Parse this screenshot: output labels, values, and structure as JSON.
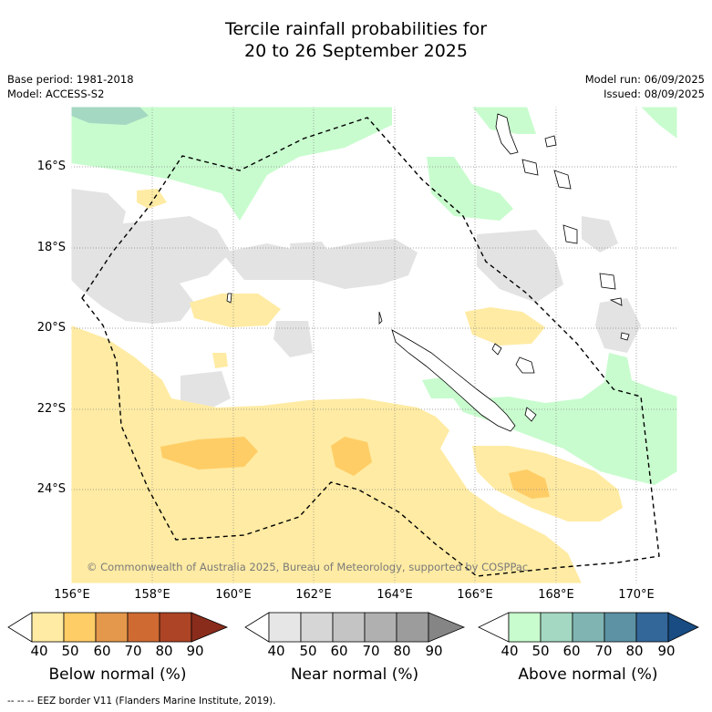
{
  "title_line1": "Tercile rainfall probabilities for",
  "title_line2": "20 to 26 September 2025",
  "base_period": "Base period: 1981-2018",
  "model": "Model: ACCESS-S2",
  "model_run": "Model run: 06/09/2025",
  "issued": "Issued: 08/09/2025",
  "lat_labels": [
    "16°S",
    "18°S",
    "20°S",
    "22°S",
    "24°S"
  ],
  "lon_labels": [
    "156°E",
    "158°E",
    "160°E",
    "162°E",
    "164°E",
    "166°E",
    "168°E",
    "170°E"
  ],
  "credit": "© Commonwealth of Australia 2025, Bureau of Meteorology, supported by COSPPac",
  "legends": [
    {
      "label": "Below normal (%)",
      "ticks": [
        "40",
        "50",
        "60",
        "70",
        "80",
        "90"
      ],
      "colors": [
        "#ffffff",
        "#ffeba3",
        "#ffcd66",
        "#e3984b",
        "#cf6a33",
        "#ad4426",
        "#8a2c1c"
      ]
    },
    {
      "label": "Near normal (%)",
      "ticks": [
        "40",
        "50",
        "60",
        "70",
        "80",
        "90"
      ],
      "colors": [
        "#ffffff",
        "#e6e6e6",
        "#d6d6d6",
        "#c4c4c4",
        "#b0b0b0",
        "#9c9c9c",
        "#858585"
      ]
    },
    {
      "label": "Above normal (%)",
      "ticks": [
        "40",
        "50",
        "60",
        "70",
        "80",
        "90"
      ],
      "colors": [
        "#ffffff",
        "#c8fcce",
        "#a4d8c2",
        "#80b4b2",
        "#5c92a4",
        "#336699",
        "#184c82"
      ]
    }
  ],
  "footer": "-- -- -- EEZ border V11 (Flanders Marine Institute, 2019).",
  "colors": {
    "below_50": "#ffeba3",
    "below_60": "#ffcd66",
    "near_50": "#e3e3e3",
    "above_50": "#c8fcce",
    "above_60": "#a4d8c2"
  }
}
